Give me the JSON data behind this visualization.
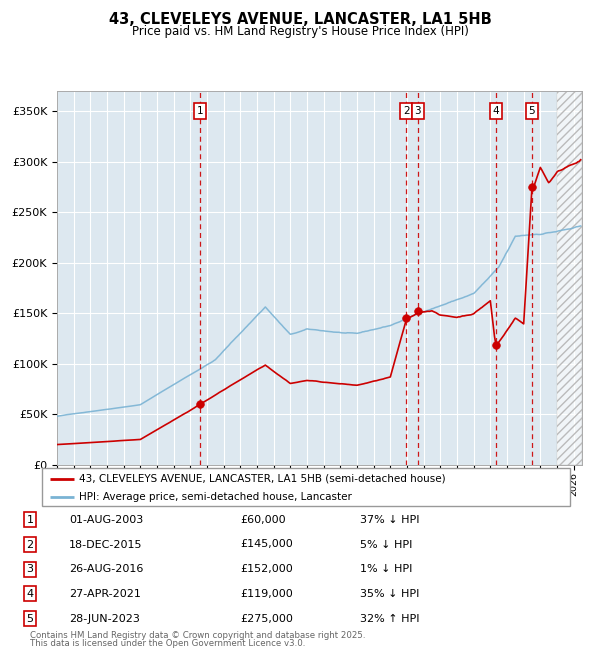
{
  "title": "43, CLEVELEYS AVENUE, LANCASTER, LA1 5HB",
  "subtitle": "Price paid vs. HM Land Registry's House Price Index (HPI)",
  "hpi_color": "#7ab3d4",
  "price_color": "#cc0000",
  "background_color": "#ffffff",
  "plot_bg_color": "#dde8f0",
  "grid_color": "#ffffff",
  "ylim": [
    0,
    370000
  ],
  "yticks": [
    0,
    50000,
    100000,
    150000,
    200000,
    250000,
    300000,
    350000
  ],
  "ytick_labels": [
    "£0",
    "£50K",
    "£100K",
    "£150K",
    "£200K",
    "£250K",
    "£300K",
    "£350K"
  ],
  "xmin": 1995.0,
  "xmax": 2026.5,
  "future_start": 2025.0,
  "sales": [
    {
      "id": 1,
      "date_label": "01-AUG-2003",
      "price": 60000,
      "date_num": 2003.58,
      "pct": "37%",
      "dir": "↓",
      "note": "HPI"
    },
    {
      "id": 2,
      "date_label": "18-DEC-2015",
      "price": 145000,
      "date_num": 2015.96,
      "pct": "5%",
      "dir": "↓",
      "note": "HPI"
    },
    {
      "id": 3,
      "date_label": "26-AUG-2016",
      "price": 152000,
      "date_num": 2016.65,
      "pct": "1%",
      "dir": "↓",
      "note": "HPI"
    },
    {
      "id": 4,
      "date_label": "27-APR-2021",
      "price": 119000,
      "date_num": 2021.32,
      "pct": "35%",
      "dir": "↓",
      "note": "HPI"
    },
    {
      "id": 5,
      "date_label": "28-JUN-2023",
      "price": 275000,
      "date_num": 2023.49,
      "pct": "32%",
      "dir": "↑",
      "note": "HPI"
    }
  ],
  "legend_entries": [
    "43, CLEVELEYS AVENUE, LANCASTER, LA1 5HB (semi-detached house)",
    "HPI: Average price, semi-detached house, Lancaster"
  ],
  "footnote1": "Contains HM Land Registry data © Crown copyright and database right 2025.",
  "footnote2": "This data is licensed under the Open Government Licence v3.0.",
  "hpi_keypoints": [
    [
      1995.0,
      48000
    ],
    [
      2000.0,
      60000
    ],
    [
      2003.5,
      95000
    ],
    [
      2004.5,
      105000
    ],
    [
      2007.5,
      158000
    ],
    [
      2009.0,
      130000
    ],
    [
      2010.0,
      135000
    ],
    [
      2013.0,
      130000
    ],
    [
      2015.0,
      138000
    ],
    [
      2017.0,
      152000
    ],
    [
      2020.0,
      170000
    ],
    [
      2021.5,
      195000
    ],
    [
      2022.5,
      225000
    ],
    [
      2024.0,
      228000
    ],
    [
      2026.5,
      235000
    ]
  ],
  "prop_keypoints": [
    [
      1995.0,
      20000
    ],
    [
      2000.0,
      25000
    ],
    [
      2003.58,
      60000
    ],
    [
      2007.5,
      100000
    ],
    [
      2009.0,
      82000
    ],
    [
      2010.0,
      85000
    ],
    [
      2013.0,
      80000
    ],
    [
      2015.0,
      88000
    ],
    [
      2015.96,
      145000
    ],
    [
      2016.65,
      152000
    ],
    [
      2017.5,
      155000
    ],
    [
      2018.0,
      150000
    ],
    [
      2019.0,
      148000
    ],
    [
      2020.0,
      152000
    ],
    [
      2021.0,
      165000
    ],
    [
      2021.32,
      119000
    ],
    [
      2021.8,
      130000
    ],
    [
      2022.5,
      148000
    ],
    [
      2023.0,
      142000
    ],
    [
      2023.49,
      275000
    ],
    [
      2024.0,
      300000
    ],
    [
      2024.5,
      285000
    ],
    [
      2025.0,
      295000
    ],
    [
      2026.5,
      310000
    ]
  ]
}
